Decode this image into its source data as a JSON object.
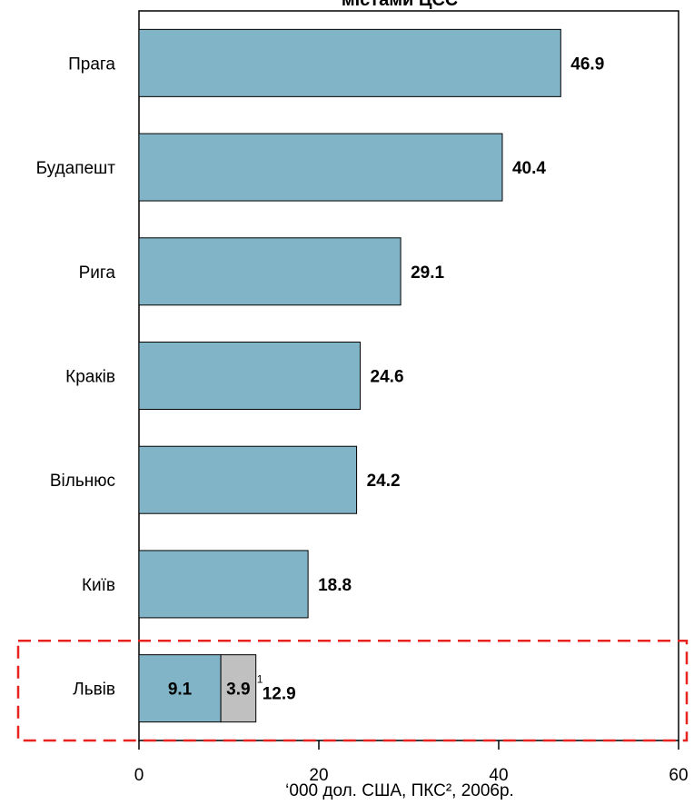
{
  "chart_data": {
    "type": "bar",
    "orientation": "horizontal",
    "stacked": true,
    "title": "містами ЦСЄ",
    "xlabel": "‘000 дол. США, ПКС², 2006р.",
    "xlim": [
      0,
      60
    ],
    "xticks": [
      "0",
      "20",
      "40",
      "60"
    ],
    "categories": [
      "Прага",
      "Будапешт",
      "Рига",
      "Краків",
      "Вільнюс",
      "Київ",
      "Львів"
    ],
    "series": [
      {
        "values": [
          46.9,
          40.4,
          29.1,
          24.6,
          24.2,
          18.8,
          9.1
        ],
        "color": "#82b4c8"
      },
      {
        "values": [
          0,
          0,
          0,
          0,
          0,
          0,
          3.9
        ],
        "color": "#c0c0c0"
      }
    ],
    "totals": [
      "46.9",
      "40.4",
      "29.1",
      "24.6",
      "24.2",
      "18.8",
      "12.9"
    ],
    "segment_labels": {
      "lviv_base": "9.1",
      "lviv_extra": "3.9",
      "lviv_extra_footnote": "1"
    },
    "highlight": {
      "category": "Львів",
      "style": "dashed",
      "color": "#e8231f"
    },
    "grid": false
  }
}
